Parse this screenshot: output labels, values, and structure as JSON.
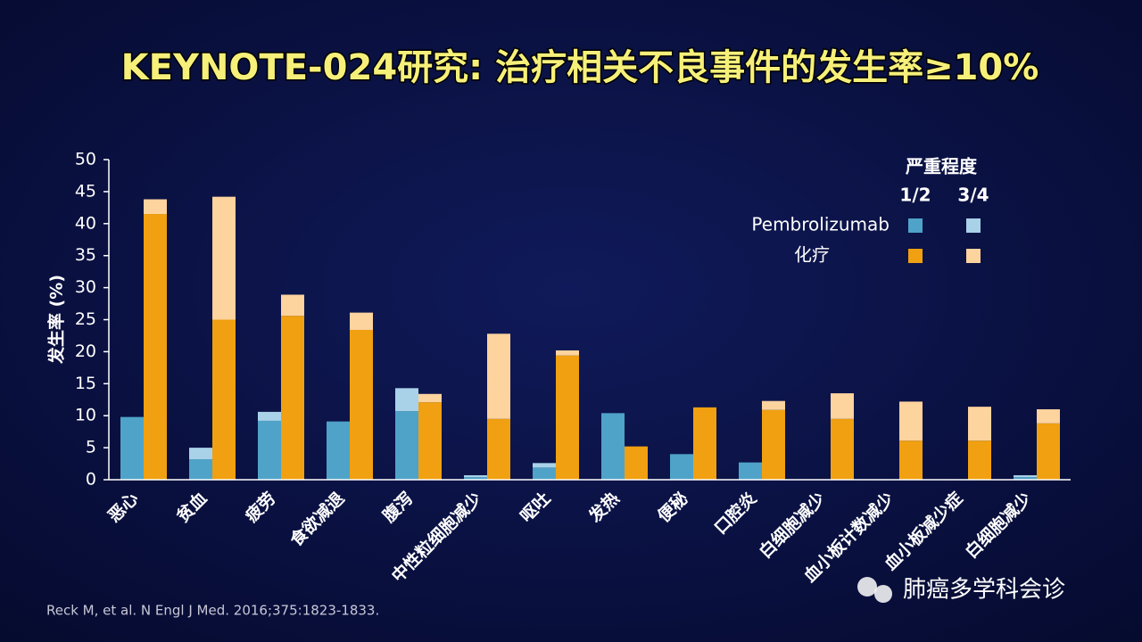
{
  "chart_data": {
    "type": "grouped-stacked-bar",
    "title": "KEYNOTE-024研究: 治疗相关不良事件的发生率≥10%",
    "y_label": "发生率 (%)",
    "categories": [
      "恶心",
      "贫血",
      "疲劳",
      "食欲减退",
      "腹泻",
      "中性粒细胞减少",
      "呕吐",
      "发热",
      "便秘",
      "口腔炎",
      "白细胞减少",
      "血小板计数减少",
      "血小板减少症",
      "白细胞减少"
    ],
    "legend_title": "严重程度",
    "severities": [
      "1/2",
      "3/4"
    ],
    "series": [
      {
        "name": "Pembrolizumab",
        "stack": [
          {
            "color": "#4fa3c8",
            "values": [
              9.8,
              3.2,
              9.2,
              9.1,
              10.7,
              0.4,
              1.9,
              10.4,
              4.0,
              2.7,
              0,
              0,
              0,
              0.4
            ]
          },
          {
            "color": "#a9d2e8",
            "values": [
              0,
              1.8,
              1.4,
              0,
              3.6,
              0.3,
              0.7,
              0,
              0,
              0,
              0,
              0,
              0,
              0.3
            ]
          }
        ]
      },
      {
        "name": "化疗",
        "stack": [
          {
            "color": "#f0a010",
            "values": [
              41.5,
              25.0,
              25.6,
              23.4,
              12.1,
              9.5,
              19.4,
              5.2,
              11.3,
              10.9,
              9.5,
              6.1,
              6.1,
              8.8
            ]
          },
          {
            "color": "#fdd39e",
            "values": [
              2.3,
              19.2,
              3.3,
              2.7,
              1.3,
              13.3,
              0.8,
              0,
              0,
              1.4,
              4.0,
              6.1,
              5.3,
              2.2
            ]
          }
        ]
      }
    ],
    "ylim": [
      0,
      50
    ],
    "yticks": [
      0,
      5,
      10,
      15,
      20,
      25,
      30,
      35,
      40,
      45,
      50
    ],
    "footnote": "Reck M, et al. N Engl J Med. 2016;375:1823-1833.",
    "watermark": "肺癌多学科会诊"
  }
}
